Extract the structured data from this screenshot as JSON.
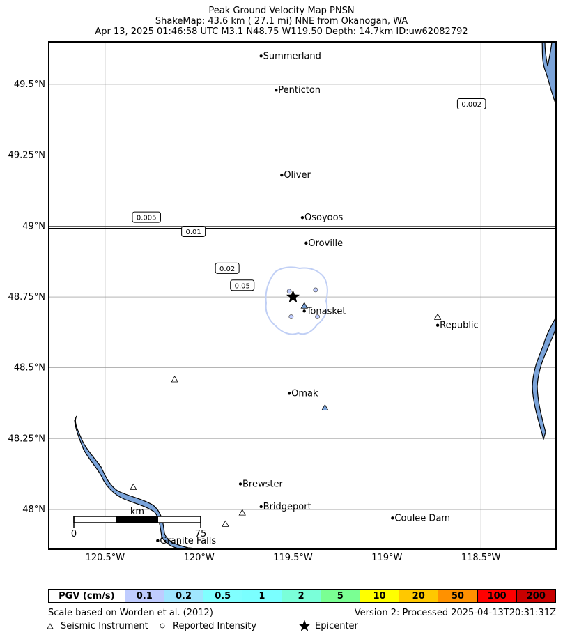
{
  "header": {
    "line1": "Peak Ground Velocity Map PNSN",
    "line2": "ShakeMap: 43.6 km (  27.1 mi) NNE from Okanogan, WA",
    "line3": "Apr 13, 2025 01:46:58 UTC M3.1 N48.75 W119.50 Depth: 14.7km ID:uw62082792"
  },
  "map": {
    "lat_labels": [
      "49.5°N",
      "49.25°N",
      "49°N",
      "48.75°N",
      "48.5°N",
      "48.25°N",
      "48°N"
    ],
    "lat_values": [
      49.5,
      49.25,
      49.0,
      48.75,
      48.5,
      48.25,
      48.0
    ],
    "lon_labels": [
      "120.5°W",
      "120°W",
      "119.5°W",
      "119°W",
      "118.5°W"
    ],
    "lon_values": [
      -120.5,
      -120.0,
      -119.5,
      -119.0,
      -118.5
    ],
    "lon_range": [
      -120.8,
      -118.1
    ],
    "lat_range": [
      47.86,
      49.65
    ],
    "water_color": "#7aa3d9",
    "epicenter": {
      "lat": 48.75,
      "lon": -119.5
    },
    "cities": [
      {
        "name": "Summerland",
        "lat": 49.6,
        "lon": -119.67
      },
      {
        "name": "Penticton",
        "lat": 49.48,
        "lon": -119.59
      },
      {
        "name": "Oliver",
        "lat": 49.18,
        "lon": -119.56
      },
      {
        "name": "Osoyoos",
        "lat": 49.03,
        "lon": -119.45
      },
      {
        "name": "Oroville",
        "lat": 48.94,
        "lon": -119.43
      },
      {
        "name": "Tonasket",
        "lat": 48.7,
        "lon": -119.44
      },
      {
        "name": "Republic",
        "lat": 48.65,
        "lon": -118.73
      },
      {
        "name": "Omak",
        "lat": 48.41,
        "lon": -119.52
      },
      {
        "name": "Brewster",
        "lat": 48.09,
        "lon": -119.78
      },
      {
        "name": "Bridgeport",
        "lat": 48.01,
        "lon": -119.67
      },
      {
        "name": "Coulee Dam",
        "lat": 47.97,
        "lon": -118.97
      },
      {
        "name": "Granite Falls",
        "lat": 47.89,
        "lon": -120.22
      }
    ],
    "contour_labels": [
      {
        "text": "0.002",
        "lat": 49.43,
        "lon": -118.55
      },
      {
        "text": "0.005",
        "lat": 49.03,
        "lon": -120.28
      },
      {
        "text": "0.01",
        "lat": 48.98,
        "lon": -120.03
      },
      {
        "text": "0.02",
        "lat": 48.85,
        "lon": -119.85
      },
      {
        "text": "0.05",
        "lat": 48.79,
        "lon": -119.77
      }
    ],
    "stations": [
      {
        "lat": 48.72,
        "lon": -119.44,
        "filled": true
      },
      {
        "lat": 48.36,
        "lon": -119.33,
        "filled": true
      },
      {
        "lat": 48.68,
        "lon": -118.73,
        "filled": false
      },
      {
        "lat": 48.46,
        "lon": -120.13,
        "filled": false
      },
      {
        "lat": 48.08,
        "lon": -120.35,
        "filled": false
      },
      {
        "lat": 47.99,
        "lon": -119.77,
        "filled": false
      },
      {
        "lat": 47.95,
        "lon": -119.86,
        "filled": false
      }
    ],
    "intensity_points": [
      {
        "lat": 48.77,
        "lon": -119.52
      },
      {
        "lat": 48.775,
        "lon": -119.38
      },
      {
        "lat": 48.68,
        "lon": -119.51
      },
      {
        "lat": 48.68,
        "lon": -119.37
      }
    ],
    "scale_bar": {
      "label": "km",
      "start": "0",
      "end": "75"
    }
  },
  "legend": {
    "title": "PGV (cm/s)",
    "bins": [
      {
        "label": "0.1",
        "color": "#bfccff"
      },
      {
        "label": "0.2",
        "color": "#a0e6ff"
      },
      {
        "label": "0.5",
        "color": "#80ffff"
      },
      {
        "label": "1",
        "color": "#7affff"
      },
      {
        "label": "2",
        "color": "#7affd9"
      },
      {
        "label": "5",
        "color": "#7aff93"
      },
      {
        "label": "10",
        "color": "#ffff00"
      },
      {
        "label": "20",
        "color": "#ffc800"
      },
      {
        "label": "50",
        "color": "#ff9100"
      },
      {
        "label": "100",
        "color": "#ff0000"
      },
      {
        "label": "200",
        "color": "#c80000"
      }
    ]
  },
  "footer": {
    "scale_note": "Scale based on Worden et al. (2012)",
    "version": "Version 2: Processed 2025-04-13T20:31:31Z",
    "seismic_label": "Seismic Instrument",
    "reported_label": "Reported Intensity",
    "epicenter_label": "Epicenter"
  }
}
